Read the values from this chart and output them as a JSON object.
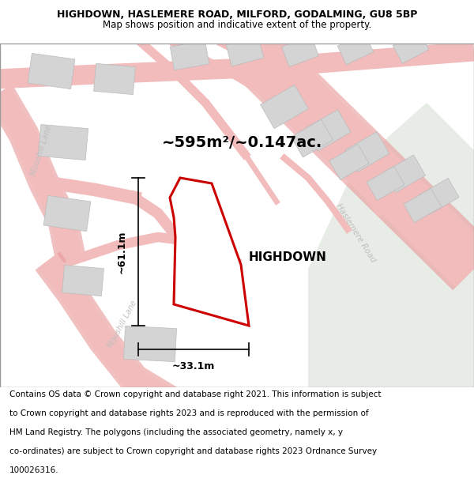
{
  "title_line1": "HIGHDOWN, HASLEMERE ROAD, MILFORD, GODALMING, GU8 5BP",
  "title_line2": "Map shows position and indicative extent of the property.",
  "area_label": "~595m²/~0.147ac.",
  "property_name": "HIGHDOWN",
  "dim_vertical": "~61.1m",
  "dim_horizontal": "~33.1m",
  "road_label1": "Moushill Lane",
  "road_label2": "Moushill Lane",
  "road_label3": "Haslemere Road",
  "footer_lines": [
    "Contains OS data © Crown copyright and database right 2021. This information is subject",
    "to Crown copyright and database rights 2023 and is reproduced with the permission of",
    "HM Land Registry. The polygons (including the associated geometry, namely x, y",
    "co-ordinates) are subject to Crown copyright and database rights 2023 Ordnance Survey",
    "100026316."
  ],
  "map_bg": "#fdf8f8",
  "property_fill": "#ffffff",
  "property_edge": "#cc0000",
  "road_color": "#f2bcbc",
  "road_color_dark": "#e89898",
  "building_color": "#d4d4d4",
  "building_edge": "#bbbbbb",
  "green_color": "#e8ece6",
  "title_fontsize": 9,
  "subtitle_fontsize": 8.5,
  "footer_fontsize": 7.5,
  "dim_fontsize": 9,
  "area_fontsize": 14,
  "propname_fontsize": 11
}
